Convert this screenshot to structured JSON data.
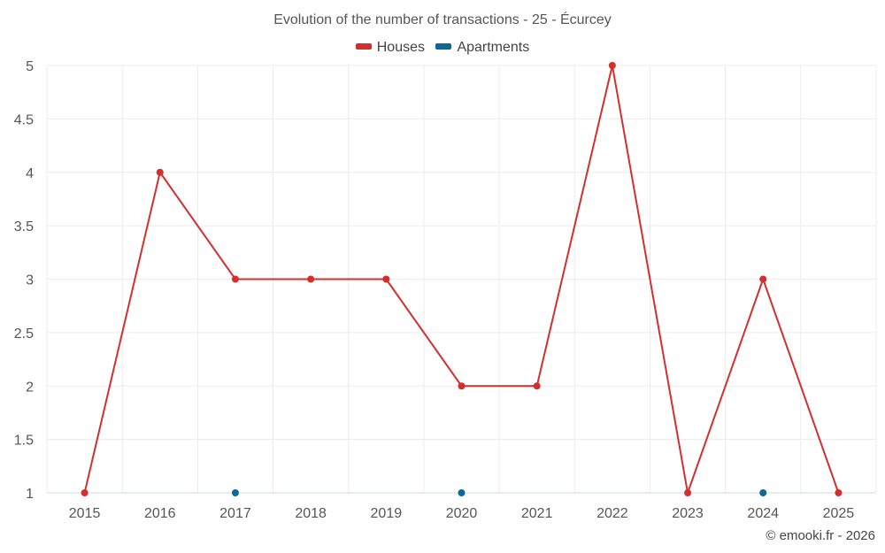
{
  "chart_data": {
    "type": "line",
    "title": "Evolution of the number of transactions - 25 - Écurcey",
    "x": [
      "2015",
      "2016",
      "2017",
      "2018",
      "2019",
      "2020",
      "2021",
      "2022",
      "2023",
      "2024",
      "2025"
    ],
    "ylim": [
      1,
      5
    ],
    "yticks": [
      "1",
      "1.5",
      "2",
      "2.5",
      "3",
      "3.5",
      "4",
      "4.5",
      "5"
    ],
    "grid": true,
    "legend_position": "top-center",
    "series": [
      {
        "name": "Houses",
        "color": "#d32f2f",
        "line": true,
        "values": [
          1,
          4,
          3,
          3,
          3,
          2,
          2,
          5,
          1,
          3,
          1
        ]
      },
      {
        "name": "Apartments",
        "color": "#0d6799",
        "line": false,
        "values": [
          null,
          null,
          1,
          null,
          null,
          1,
          null,
          null,
          null,
          1,
          null
        ]
      }
    ]
  },
  "credit": "© emooki.fr - 2026"
}
